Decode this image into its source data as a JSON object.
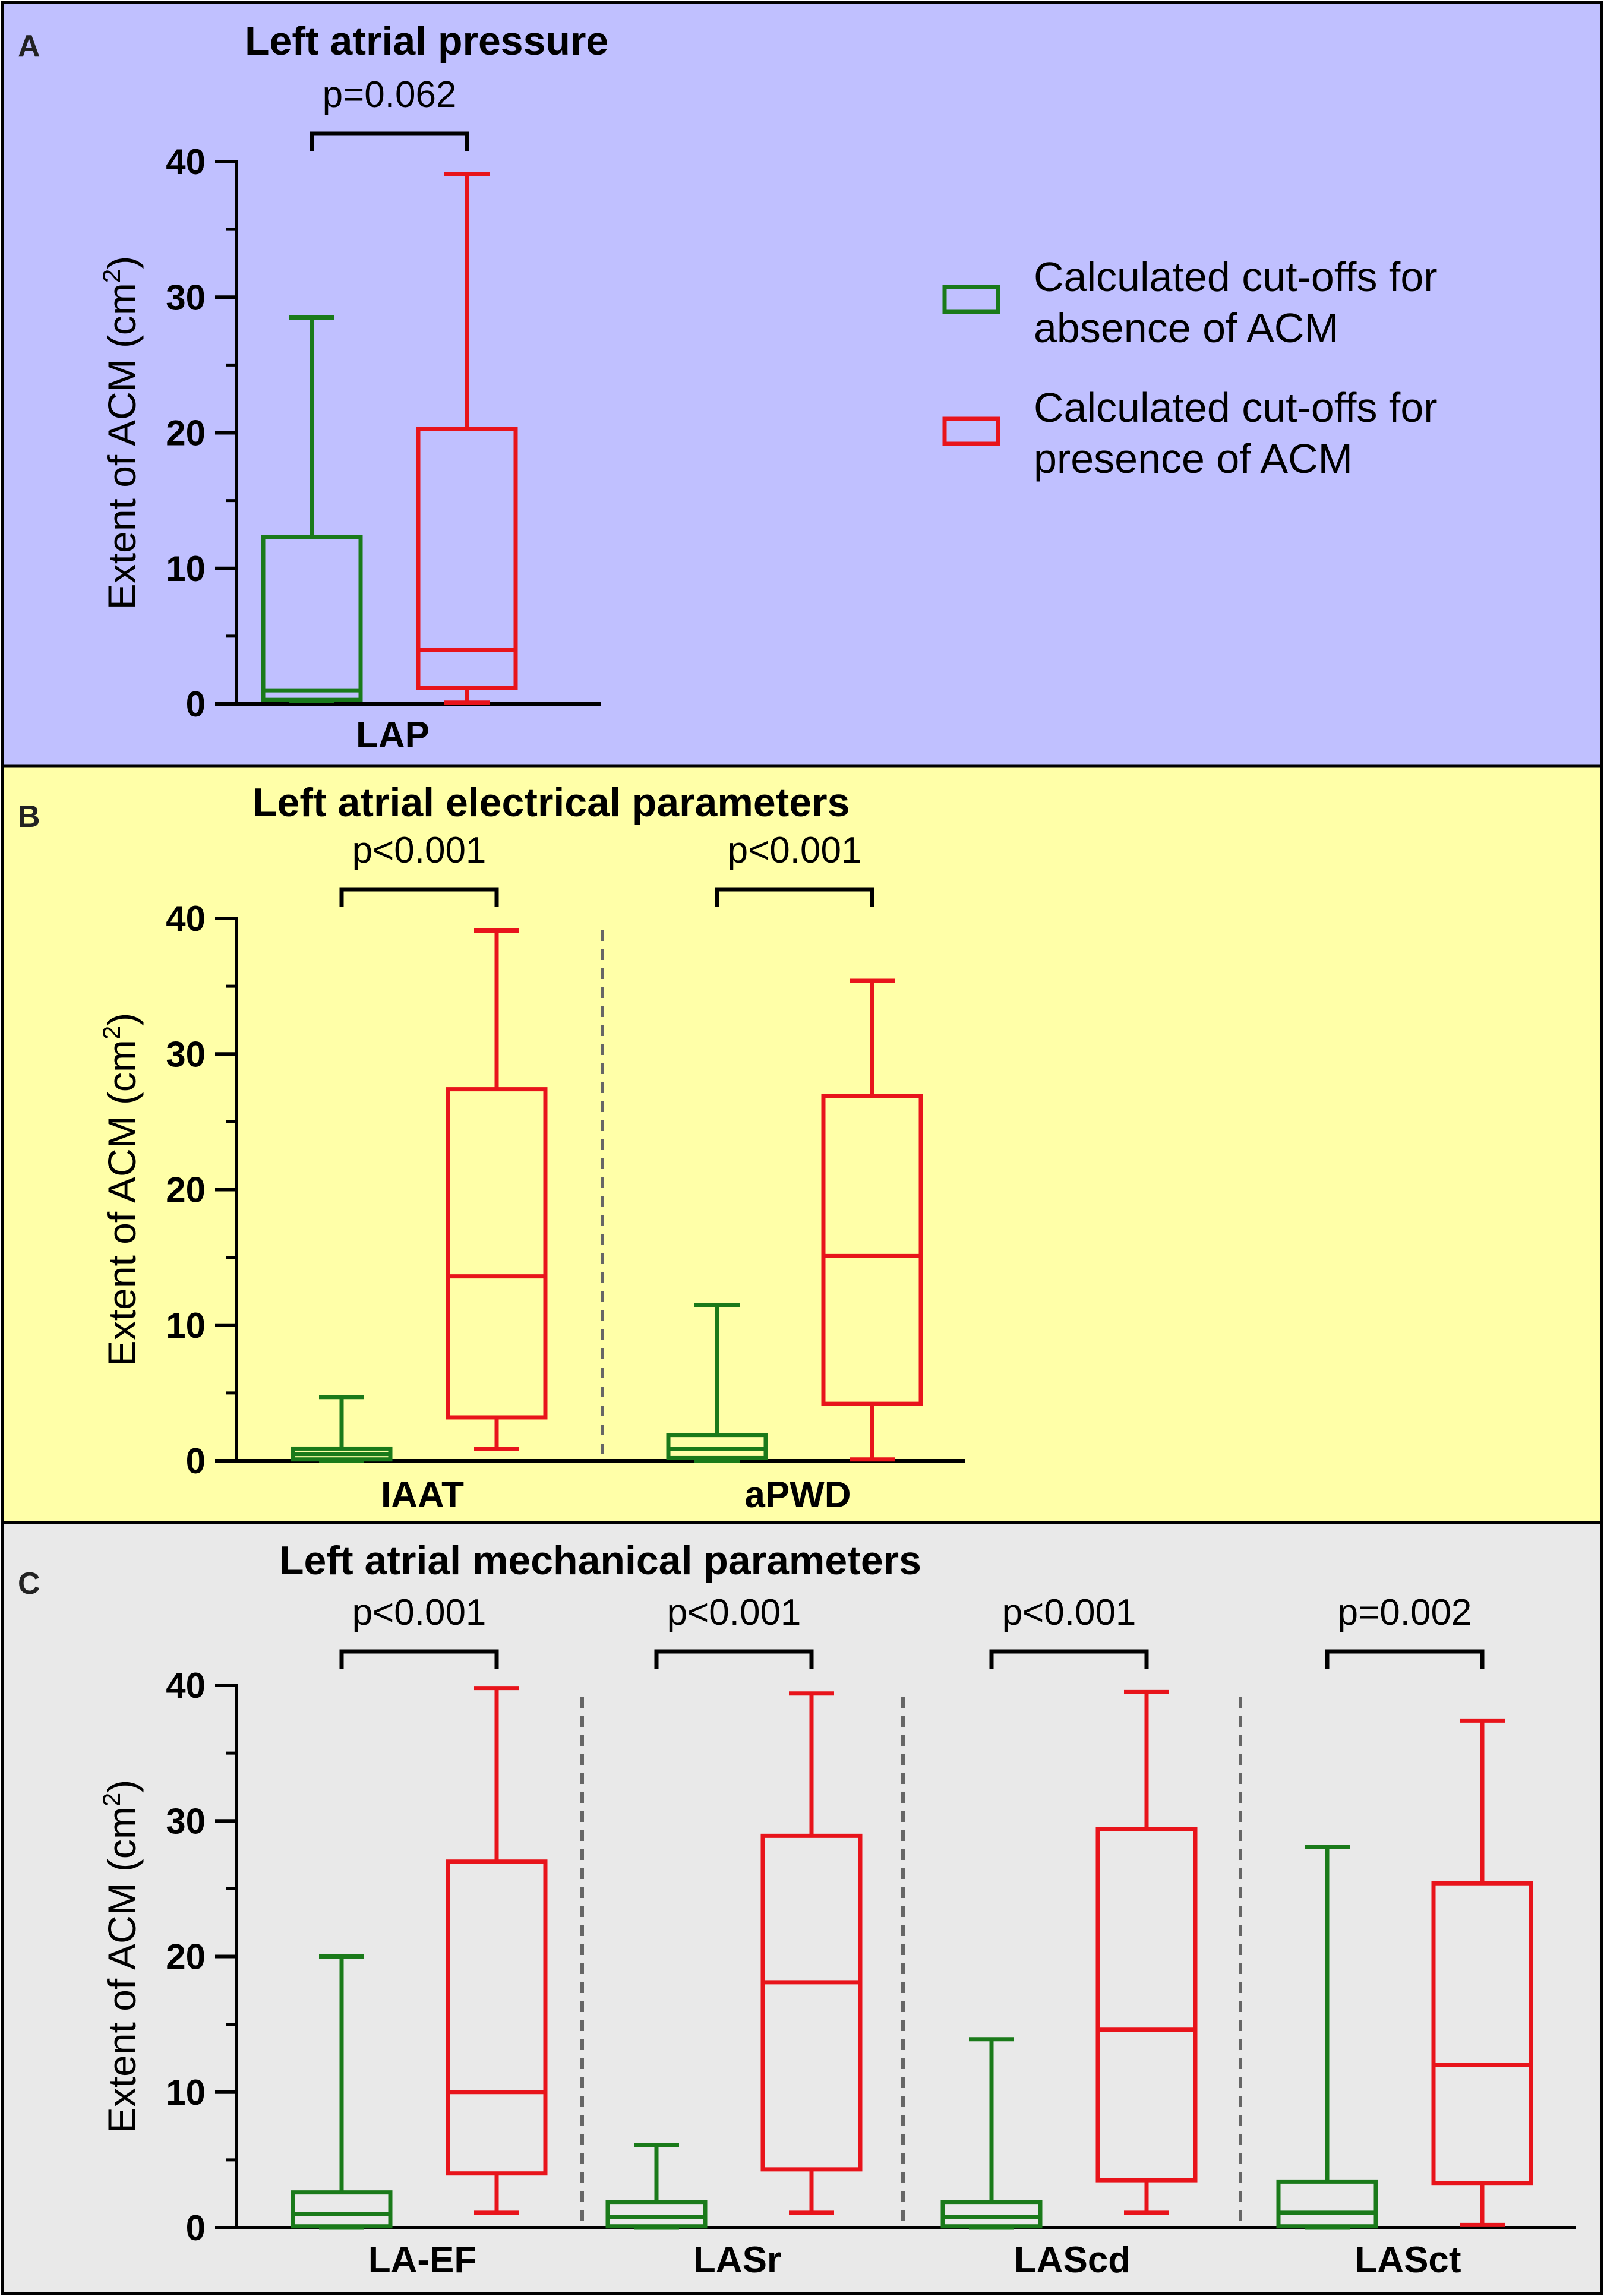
{
  "colors": {
    "absence": "#1a7a1a",
    "presence": "#e8141b",
    "panel_a_bg": "#c0c0ff",
    "panel_b_bg": "#ffffa8",
    "panel_c_bg": "#e9e9e9",
    "axis": "#000000",
    "separator": "#666666"
  },
  "legend": {
    "absence_line1": "Calculated cut-offs for",
    "absence_line2": "absence of ACM",
    "presence_line1": "Calculated cut-offs for",
    "presence_line2": "presence of ACM"
  },
  "chart_data": [
    {
      "type": "box",
      "panel_label": "A",
      "title": "Left atrial pressure",
      "ylabel": "Extent of ACM (cm",
      "ylabel_sup": "2",
      "ylabel_close": ")",
      "ylim": [
        0,
        40
      ],
      "yticks": [
        "0",
        "10",
        "20",
        "30",
        "40"
      ],
      "categories": [
        "LAP"
      ],
      "pvalues": [
        "p=0.062"
      ],
      "series": [
        {
          "name": "Calculated cut-offs for absence of ACM",
          "boxes": [
            {
              "min": 0.2,
              "q1": 0.3,
              "median": 1.0,
              "q3": 12.3,
              "max": 28.5
            }
          ]
        },
        {
          "name": "Calculated cut-offs for presence of ACM",
          "boxes": [
            {
              "min": 0.1,
              "q1": 1.2,
              "median": 4.0,
              "q3": 20.3,
              "max": 39.1
            }
          ]
        }
      ]
    },
    {
      "type": "box",
      "panel_label": "B",
      "title": "Left atrial electrical parameters",
      "ylabel": "Extent of ACM (cm",
      "ylabel_sup": "2",
      "ylabel_close": ")",
      "ylim": [
        0,
        40
      ],
      "yticks": [
        "0",
        "10",
        "20",
        "30",
        "40"
      ],
      "categories": [
        "IAAT",
        "aPWD"
      ],
      "pvalues": [
        "p<0.001",
        "p<0.001"
      ],
      "series": [
        {
          "name": "Calculated cut-offs for absence of ACM",
          "boxes": [
            {
              "min": 0.0,
              "q1": 0.1,
              "median": 0.5,
              "q3": 0.9,
              "max": 4.7
            },
            {
              "min": 0.0,
              "q1": 0.2,
              "median": 0.9,
              "q3": 1.9,
              "max": 11.5
            }
          ]
        },
        {
          "name": "Calculated cut-offs for presence of ACM",
          "boxes": [
            {
              "min": 0.9,
              "q1": 3.2,
              "median": 13.6,
              "q3": 27.4,
              "max": 39.1
            },
            {
              "min": 0.1,
              "q1": 4.2,
              "median": 15.1,
              "q3": 26.9,
              "max": 35.4
            }
          ]
        }
      ]
    },
    {
      "type": "box",
      "panel_label": "C",
      "title": "Left atrial mechanical parameters",
      "ylabel": "Extent of ACM (cm",
      "ylabel_sup": "2",
      "ylabel_close": ")",
      "ylim": [
        0,
        40
      ],
      "yticks": [
        "0",
        "10",
        "20",
        "30",
        "40"
      ],
      "categories": [
        "LA-EF",
        "LASr",
        "LAScd",
        "LASct"
      ],
      "pvalues": [
        "p<0.001",
        "p<0.001",
        "p<0.001",
        "p=0.002"
      ],
      "series": [
        {
          "name": "Calculated cut-offs for absence of ACM",
          "boxes": [
            {
              "min": 0.0,
              "q1": 0.1,
              "median": 1.0,
              "q3": 2.6,
              "max": 20.0
            },
            {
              "min": 0.0,
              "q1": 0.1,
              "median": 0.8,
              "q3": 1.9,
              "max": 6.1
            },
            {
              "min": 0.0,
              "q1": 0.1,
              "median": 0.8,
              "q3": 1.9,
              "max": 13.9
            },
            {
              "min": 0.0,
              "q1": 0.1,
              "median": 1.1,
              "q3": 3.4,
              "max": 28.1
            }
          ]
        },
        {
          "name": "Calculated cut-offs for presence of ACM",
          "boxes": [
            {
              "min": 1.1,
              "q1": 4.0,
              "median": 10.0,
              "q3": 27.0,
              "max": 39.8
            },
            {
              "min": 1.1,
              "q1": 4.3,
              "median": 18.1,
              "q3": 28.9,
              "max": 39.4
            },
            {
              "min": 1.1,
              "q1": 3.5,
              "median": 14.6,
              "q3": 29.4,
              "max": 39.5
            },
            {
              "min": 0.2,
              "q1": 3.3,
              "median": 12.0,
              "q3": 25.4,
              "max": 37.4
            }
          ]
        }
      ]
    }
  ]
}
